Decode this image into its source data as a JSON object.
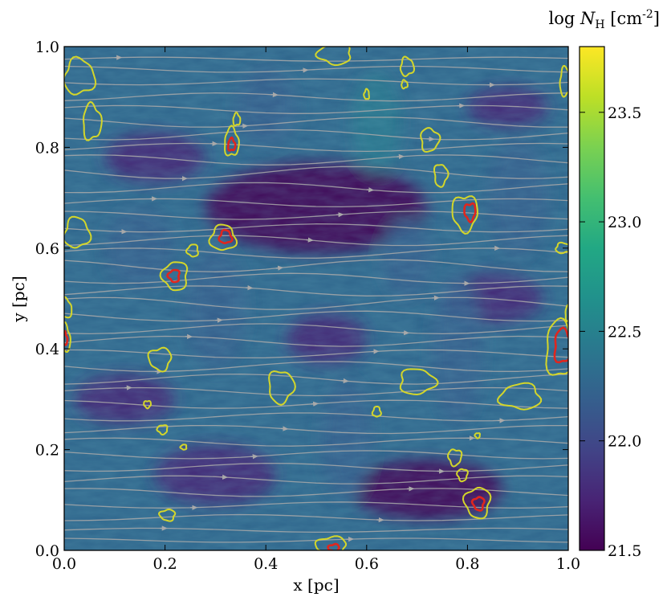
{
  "chart_data": {
    "type": "heatmap",
    "subtype": "column-density map with magnetic-field streamlines and density contours",
    "xlabel": "x [pc]",
    "ylabel": "y [pc]",
    "xlim": [
      0.0,
      1.0
    ],
    "ylim": [
      0.0,
      1.0
    ],
    "xticks": [
      "0.0",
      "0.2",
      "0.4",
      "0.6",
      "0.8",
      "1.0"
    ],
    "yticks": [
      "0.0",
      "0.2",
      "0.4",
      "0.6",
      "0.8",
      "1.0"
    ],
    "grid": false,
    "colormap": "viridis",
    "colorbar": {
      "label_prefix": "log ",
      "label_symbol": "N",
      "label_sub": "H",
      "label_unit": " [cm",
      "label_exp": "-2",
      "label_close": "]",
      "range": [
        21.5,
        23.8
      ],
      "ticks": [
        "21.5",
        "22.0",
        "22.5",
        "23.0",
        "23.5"
      ],
      "tick_values": [
        21.5,
        22.0,
        22.5,
        23.0,
        23.5
      ]
    },
    "colors": {
      "viridis": [
        "#440154",
        "#482475",
        "#414487",
        "#355f8d",
        "#2a788e",
        "#21918c",
        "#22a884",
        "#44bf70",
        "#7ad151",
        "#bddf26",
        "#fde725"
      ],
      "contour_low": "#d4d62a",
      "contour_high": "#e0261e",
      "streamline": "#a9a9a9"
    },
    "contours_low_level": [
      {
        "x": 0.03,
        "y": 0.94,
        "rx": 0.03,
        "ry": 0.035
      },
      {
        "x": 0.055,
        "y": 0.85,
        "rx": 0.018,
        "ry": 0.035
      },
      {
        "x": 0.025,
        "y": 0.63,
        "rx": 0.025,
        "ry": 0.03
      },
      {
        "x": 0.0,
        "y": 0.42,
        "rx": 0.012,
        "ry": 0.028
      },
      {
        "x": 0.0,
        "y": 0.48,
        "rx": 0.015,
        "ry": 0.02
      },
      {
        "x": 0.19,
        "y": 0.38,
        "rx": 0.022,
        "ry": 0.022
      },
      {
        "x": 0.165,
        "y": 0.29,
        "rx": 0.007,
        "ry": 0.007
      },
      {
        "x": 0.195,
        "y": 0.24,
        "rx": 0.01,
        "ry": 0.009
      },
      {
        "x": 0.237,
        "y": 0.205,
        "rx": 0.006,
        "ry": 0.005
      },
      {
        "x": 0.205,
        "y": 0.07,
        "rx": 0.015,
        "ry": 0.011
      },
      {
        "x": 0.22,
        "y": 0.545,
        "rx": 0.025,
        "ry": 0.028
      },
      {
        "x": 0.255,
        "y": 0.595,
        "rx": 0.011,
        "ry": 0.012
      },
      {
        "x": 0.315,
        "y": 0.62,
        "rx": 0.025,
        "ry": 0.025
      },
      {
        "x": 0.332,
        "y": 0.81,
        "rx": 0.014,
        "ry": 0.028
      },
      {
        "x": 0.342,
        "y": 0.855,
        "rx": 0.007,
        "ry": 0.012
      },
      {
        "x": 0.43,
        "y": 0.325,
        "rx": 0.025,
        "ry": 0.032
      },
      {
        "x": 0.537,
        "y": 0.985,
        "rx": 0.033,
        "ry": 0.02
      },
      {
        "x": 0.53,
        "y": 0.01,
        "rx": 0.03,
        "ry": 0.017
      },
      {
        "x": 0.6,
        "y": 0.905,
        "rx": 0.005,
        "ry": 0.01
      },
      {
        "x": 0.62,
        "y": 0.275,
        "rx": 0.008,
        "ry": 0.01
      },
      {
        "x": 0.68,
        "y": 0.96,
        "rx": 0.013,
        "ry": 0.018
      },
      {
        "x": 0.675,
        "y": 0.925,
        "rx": 0.006,
        "ry": 0.008
      },
      {
        "x": 0.7,
        "y": 0.335,
        "rx": 0.035,
        "ry": 0.025
      },
      {
        "x": 0.725,
        "y": 0.815,
        "rx": 0.018,
        "ry": 0.023
      },
      {
        "x": 0.747,
        "y": 0.745,
        "rx": 0.013,
        "ry": 0.022
      },
      {
        "x": 0.795,
        "y": 0.67,
        "rx": 0.025,
        "ry": 0.035
      },
      {
        "x": 0.775,
        "y": 0.185,
        "rx": 0.013,
        "ry": 0.016
      },
      {
        "x": 0.79,
        "y": 0.15,
        "rx": 0.01,
        "ry": 0.012
      },
      {
        "x": 0.82,
        "y": 0.095,
        "rx": 0.025,
        "ry": 0.03
      },
      {
        "x": 0.82,
        "y": 0.228,
        "rx": 0.005,
        "ry": 0.005
      },
      {
        "x": 0.905,
        "y": 0.305,
        "rx": 0.04,
        "ry": 0.025
      },
      {
        "x": 0.985,
        "y": 0.4,
        "rx": 0.03,
        "ry": 0.055
      },
      {
        "x": 0.99,
        "y": 0.6,
        "rx": 0.015,
        "ry": 0.01
      },
      {
        "x": 0.995,
        "y": 0.93,
        "rx": 0.012,
        "ry": 0.028
      },
      {
        "x": 1.0,
        "y": 0.47,
        "rx": 0.006,
        "ry": 0.015
      }
    ],
    "contours_high_level": [
      {
        "x": 0.332,
        "y": 0.805,
        "rx": 0.007,
        "ry": 0.012
      },
      {
        "x": 0.32,
        "y": 0.622,
        "rx": 0.012,
        "ry": 0.013
      },
      {
        "x": 0.218,
        "y": 0.545,
        "rx": 0.011,
        "ry": 0.012
      },
      {
        "x": 0.805,
        "y": 0.672,
        "rx": 0.011,
        "ry": 0.017
      },
      {
        "x": 0.822,
        "y": 0.093,
        "rx": 0.011,
        "ry": 0.013
      },
      {
        "x": 0.99,
        "y": 0.405,
        "rx": 0.018,
        "ry": 0.033
      },
      {
        "x": 0.0,
        "y": 0.42,
        "rx": 0.006,
        "ry": 0.013
      },
      {
        "x": 0.535,
        "y": 0.005,
        "rx": 0.011,
        "ry": 0.007
      }
    ],
    "density_features": [
      {
        "x": 0.5,
        "y": 0.68,
        "rx": 0.22,
        "ry": 0.09,
        "v": 21.55
      },
      {
        "x": 0.18,
        "y": 0.78,
        "rx": 0.1,
        "ry": 0.05,
        "v": 21.65
      },
      {
        "x": 0.72,
        "y": 0.12,
        "rx": 0.15,
        "ry": 0.06,
        "v": 21.6
      },
      {
        "x": 0.3,
        "y": 0.15,
        "rx": 0.12,
        "ry": 0.06,
        "v": 21.62
      },
      {
        "x": 0.12,
        "y": 0.3,
        "rx": 0.1,
        "ry": 0.05,
        "v": 21.65
      },
      {
        "x": 0.85,
        "y": 0.5,
        "rx": 0.1,
        "ry": 0.05,
        "v": 21.62
      },
      {
        "x": 0.52,
        "y": 0.42,
        "rx": 0.08,
        "ry": 0.05,
        "v": 21.65
      },
      {
        "x": 0.88,
        "y": 0.88,
        "rx": 0.08,
        "ry": 0.04,
        "v": 21.65
      },
      {
        "x": 0.3,
        "y": 0.48,
        "rx": 0.06,
        "ry": 0.12,
        "v": 22.25
      },
      {
        "x": 0.62,
        "y": 0.85,
        "rx": 0.05,
        "ry": 0.1,
        "v": 22.35
      },
      {
        "x": 0.56,
        "y": 0.22,
        "rx": 0.05,
        "ry": 0.12,
        "v": 22.3
      },
      {
        "x": 0.78,
        "y": 0.4,
        "rx": 0.05,
        "ry": 0.15,
        "v": 22.25
      },
      {
        "x": 0.4,
        "y": 0.88,
        "rx": 0.06,
        "ry": 0.08,
        "v": 22.2
      },
      {
        "x": 0.15,
        "y": 0.6,
        "rx": 0.07,
        "ry": 0.08,
        "v": 22.2
      },
      {
        "x": 0.9,
        "y": 0.7,
        "rx": 0.06,
        "ry": 0.12,
        "v": 22.2
      },
      {
        "x": 0.68,
        "y": 0.58,
        "rx": 0.05,
        "ry": 0.08,
        "v": 22.15
      }
    ],
    "streamlines": [
      {
        "y": 0.975,
        "amp": 0.004
      },
      {
        "y": 0.955,
        "amp": 0.006
      },
      {
        "y": 0.93,
        "amp": 0.006
      },
      {
        "y": 0.9,
        "amp": 0.008
      },
      {
        "y": 0.875,
        "amp": 0.008
      },
      {
        "y": 0.85,
        "amp": 0.01
      },
      {
        "y": 0.825,
        "amp": 0.01
      },
      {
        "y": 0.8,
        "amp": 0.008
      },
      {
        "y": 0.775,
        "amp": 0.01
      },
      {
        "y": 0.75,
        "amp": 0.012
      },
      {
        "y": 0.72,
        "amp": 0.01
      },
      {
        "y": 0.69,
        "amp": 0.008
      },
      {
        "y": 0.665,
        "amp": 0.008
      },
      {
        "y": 0.64,
        "amp": 0.008
      },
      {
        "y": 0.615,
        "amp": 0.01
      },
      {
        "y": 0.59,
        "amp": 0.01
      },
      {
        "y": 0.565,
        "amp": 0.012
      },
      {
        "y": 0.54,
        "amp": 0.01
      },
      {
        "y": 0.515,
        "amp": 0.01
      },
      {
        "y": 0.49,
        "amp": 0.012
      },
      {
        "y": 0.465,
        "amp": 0.01
      },
      {
        "y": 0.44,
        "amp": 0.01
      },
      {
        "y": 0.415,
        "amp": 0.01
      },
      {
        "y": 0.39,
        "amp": 0.008
      },
      {
        "y": 0.365,
        "amp": 0.01
      },
      {
        "y": 0.34,
        "amp": 0.01
      },
      {
        "y": 0.315,
        "amp": 0.008
      },
      {
        "y": 0.29,
        "amp": 0.008
      },
      {
        "y": 0.265,
        "amp": 0.008
      },
      {
        "y": 0.24,
        "amp": 0.008
      },
      {
        "y": 0.215,
        "amp": 0.008
      },
      {
        "y": 0.19,
        "amp": 0.008
      },
      {
        "y": 0.165,
        "amp": 0.008
      },
      {
        "y": 0.14,
        "amp": 0.008
      },
      {
        "y": 0.115,
        "amp": 0.008
      },
      {
        "y": 0.09,
        "amp": 0.006
      },
      {
        "y": 0.065,
        "amp": 0.006
      },
      {
        "y": 0.04,
        "amp": 0.004
      },
      {
        "y": 0.02,
        "amp": 0.004
      }
    ]
  }
}
